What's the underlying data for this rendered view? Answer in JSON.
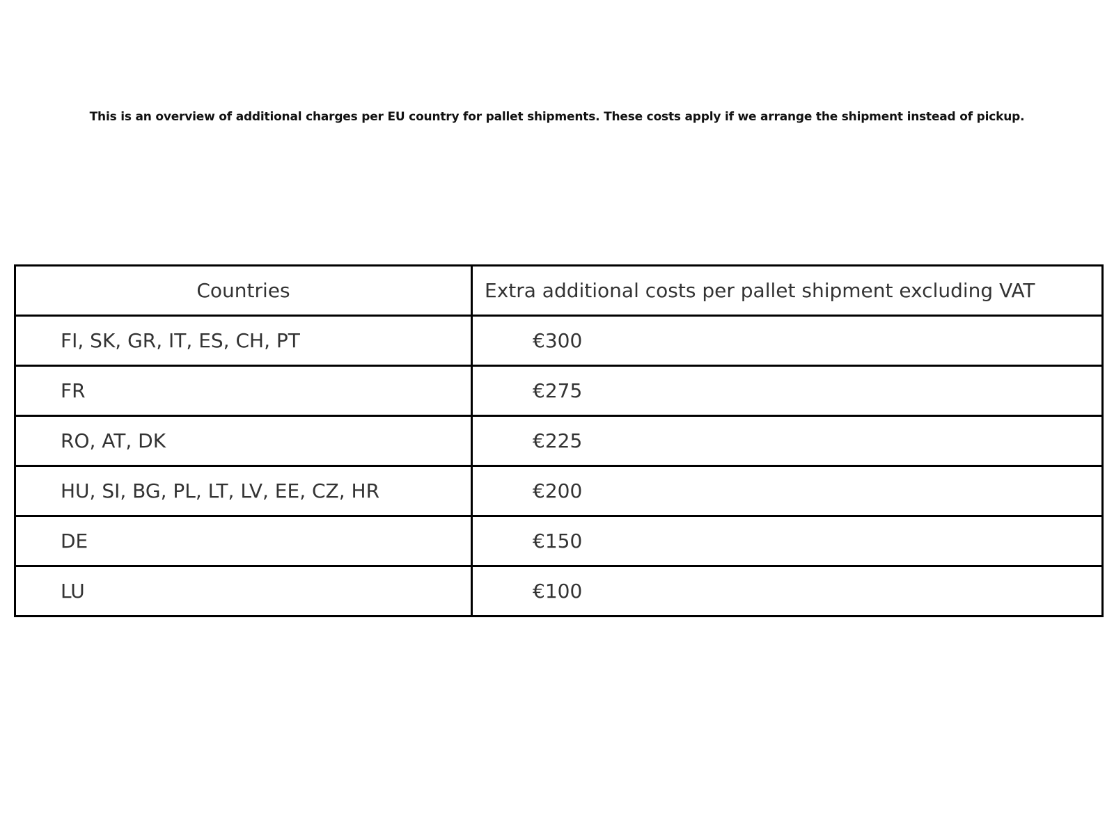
{
  "intro": {
    "text": "This is an overview of additional charges per EU country for pallet shipments. These costs apply if we arrange the shipment instead of pickup."
  },
  "table": {
    "columns": {
      "countries": "Countries",
      "cost": "Extra additional costs per pallet shipment excluding VAT"
    },
    "rows": [
      {
        "countries": "FI, SK, GR, IT, ES, CH, PT",
        "cost": "€300"
      },
      {
        "countries": "FR",
        "cost": "€275"
      },
      {
        "countries": "RO, AT, DK",
        "cost": "€225"
      },
      {
        "countries": "HU, SI, BG, PL, LT, LV, EE, CZ, HR",
        "cost": "€200"
      },
      {
        "countries": "DE",
        "cost": "€150"
      },
      {
        "countries": "LU",
        "cost": "€100"
      }
    ]
  },
  "colors": {
    "background": "#ffffff",
    "border": "#000000",
    "text": "#333333",
    "intro_text": "#111111"
  }
}
